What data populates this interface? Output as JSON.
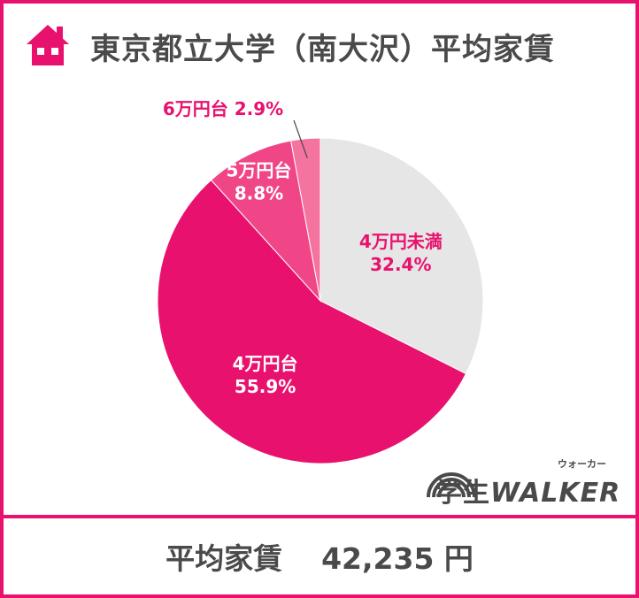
{
  "header": {
    "title": "東京都立大学（南大沢）平均家賃"
  },
  "chart_data": {
    "type": "pie",
    "start": "12 o'clock, clockwise",
    "slices": [
      {
        "label": "4万円未満",
        "value": 32.4,
        "value_label": "32.4%",
        "color": "#e6e6e6",
        "text_color": "#e8126e"
      },
      {
        "label": "4万円台",
        "value": 55.9,
        "value_label": "55.9%",
        "color": "#e8126e",
        "text_color": "#ffffff"
      },
      {
        "label": "5万円台",
        "value": 8.8,
        "value_label": "8.8%",
        "color": "#f04688",
        "text_color": "#ffffff"
      },
      {
        "label": "6万円台",
        "value": 2.9,
        "value_label": "2.9%",
        "color": "#f5739f",
        "text_color": "#e8126e"
      }
    ]
  },
  "footer": {
    "label": "平均家賃",
    "value": "42,235 円"
  },
  "logo": {
    "text_jp": "学生",
    "text_en": "WALKER",
    "reading": "ウォーカー"
  },
  "colors": {
    "accent": "#e8126e",
    "text": "#4a4a4a"
  },
  "icons": {
    "house": "house-icon"
  }
}
